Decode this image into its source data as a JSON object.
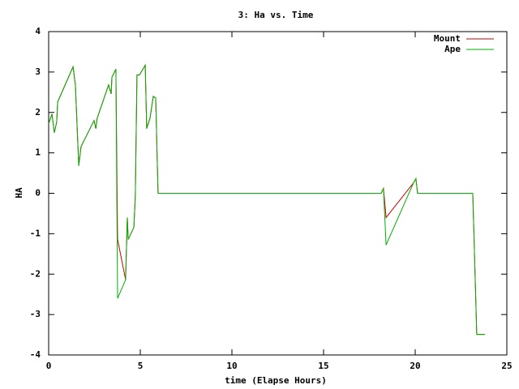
{
  "chart_data": {
    "type": "line",
    "title": "3: Ha vs. Time",
    "x_label": "time (Elapse Hours)",
    "y_label": "HA",
    "x": [
      0,
      0.18,
      0.31,
      0.44,
      0.49,
      1.33,
      1.46,
      1.64,
      1.77,
      2.48,
      2.57,
      2.65,
      3.27,
      3.41,
      3.45,
      3.67,
      3.76,
      4.2,
      4.29,
      4.34,
      4.65,
      4.73,
      4.82,
      4.96,
      5.27,
      5.35,
      5.53,
      5.71,
      5.84,
      5.97,
      18.14,
      18.27,
      18.41,
      19.91,
      20.04,
      20.13,
      23.14,
      23.36,
      23.81
    ],
    "series": [
      {
        "name": "Mount",
        "color": "#cc0000",
        "values": [
          1.72,
          1.96,
          1.5,
          1.76,
          2.26,
          3.13,
          2.67,
          0.68,
          1.16,
          1.8,
          1.6,
          1.86,
          2.68,
          2.46,
          2.87,
          3.07,
          -1.14,
          -2.14,
          -0.6,
          -1.14,
          -0.84,
          -0.04,
          2.93,
          2.93,
          3.17,
          1.6,
          1.86,
          2.4,
          2.36,
          0,
          0,
          0.12,
          -0.6,
          0.26,
          0.36,
          0,
          0,
          -3.49,
          -3.49
        ]
      },
      {
        "name": "Ape",
        "color": "#00b000",
        "values": [
          1.72,
          1.96,
          1.5,
          1.76,
          2.26,
          3.13,
          2.67,
          0.68,
          1.16,
          1.8,
          1.6,
          1.86,
          2.68,
          2.46,
          2.87,
          3.07,
          -2.6,
          -2.14,
          -0.6,
          -1.14,
          -0.84,
          -0.04,
          2.93,
          2.93,
          3.17,
          1.6,
          1.86,
          2.4,
          2.36,
          0,
          0,
          0.12,
          -1.28,
          0.26,
          0.36,
          0,
          0,
          -3.49,
          -3.49
        ]
      }
    ],
    "xlim": [
      0,
      25
    ],
    "xticks": [
      0,
      5,
      10,
      15,
      20,
      25
    ],
    "ylim": [
      -4,
      4
    ],
    "yticks": [
      -4,
      -3,
      -2,
      -1,
      0,
      1,
      2,
      3,
      4
    ],
    "legend": "upper right"
  }
}
